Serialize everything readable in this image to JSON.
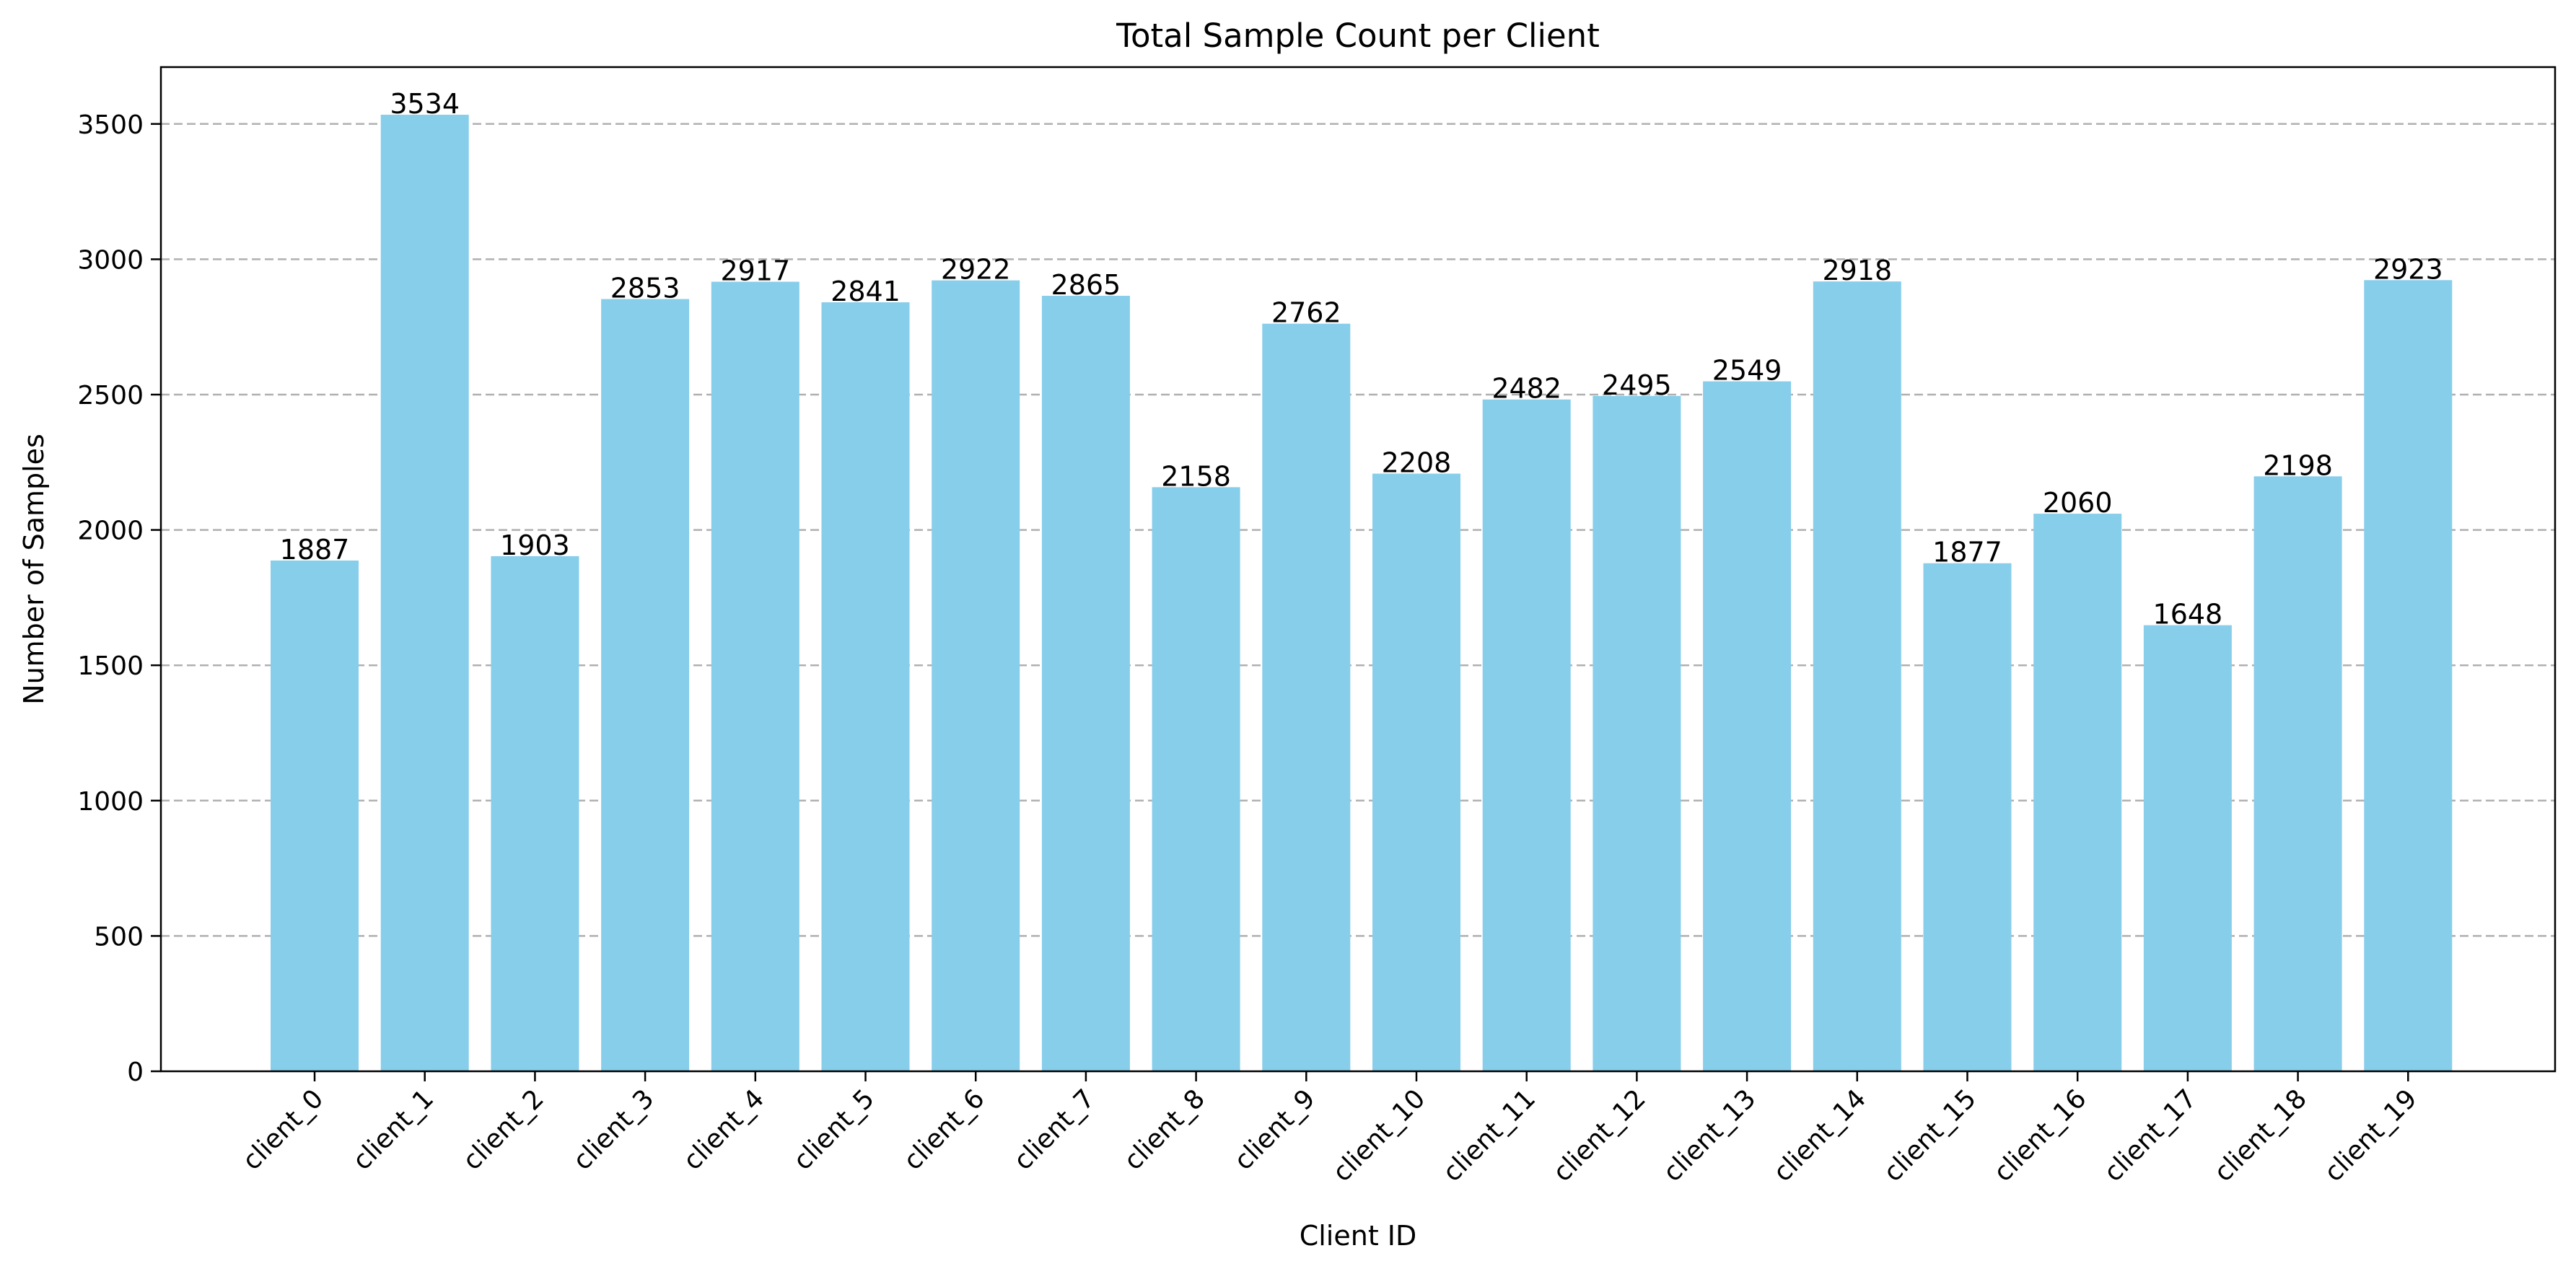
{
  "chart_data": {
    "type": "bar",
    "title": "Total Sample Count per Client",
    "xlabel": "Client ID",
    "ylabel": "Number of Samples",
    "categories": [
      "client_0",
      "client_1",
      "client_2",
      "client_3",
      "client_4",
      "client_5",
      "client_6",
      "client_7",
      "client_8",
      "client_9",
      "client_10",
      "client_11",
      "client_12",
      "client_13",
      "client_14",
      "client_15",
      "client_16",
      "client_17",
      "client_18",
      "client_19"
    ],
    "values": [
      1887,
      3534,
      1903,
      2853,
      2917,
      2841,
      2922,
      2865,
      2158,
      2762,
      2208,
      2482,
      2495,
      2549,
      2918,
      1877,
      2060,
      1648,
      2198,
      2923
    ],
    "ylim": [
      0,
      3710
    ],
    "yticks": [
      0,
      500,
      1000,
      1500,
      2000,
      2500,
      3000,
      3500
    ],
    "bar_color": "#87CEEB",
    "grid": "y, dashed",
    "legend": "none",
    "data_labels": true
  }
}
